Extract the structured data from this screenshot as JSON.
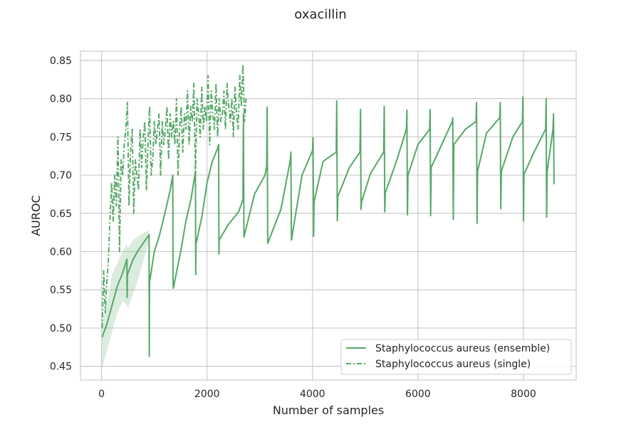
{
  "chart_data": {
    "type": "line",
    "title": "oxacillin",
    "xlabel": "Number of samples",
    "ylabel": "AUROC",
    "xlim": [
      -400,
      9000
    ],
    "ylim": [
      0.432,
      0.862
    ],
    "xticks": [
      0,
      2000,
      4000,
      6000,
      8000
    ],
    "xtick_labels": [
      "0",
      "2000",
      "4000",
      "6000",
      "8000"
    ],
    "yticks": [
      0.45,
      0.5,
      0.55,
      0.6,
      0.65,
      0.7,
      0.75,
      0.8,
      0.85
    ],
    "ytick_labels": [
      "0.45",
      "0.50",
      "0.55",
      "0.60",
      "0.65",
      "0.70",
      "0.75",
      "0.80",
      "0.85"
    ],
    "grid": true,
    "legend_position": "lower-right",
    "colors": {
      "series": "#55a868",
      "band": "#55a868",
      "grid": "#cccccc",
      "frame": "#cccccc"
    },
    "series": [
      {
        "name": "Staphylococcus aureus (ensemble)",
        "style": "solid",
        "x": [
          10,
          100,
          200,
          300,
          400,
          480,
          485,
          490,
          600,
          700,
          800,
          900,
          905,
          910,
          1000,
          1100,
          1200,
          1300,
          1350,
          1355,
          1360,
          1500,
          1600,
          1700,
          1780,
          1785,
          1790,
          1900,
          2000,
          2100,
          2200,
          2220,
          2225,
          2230,
          2400,
          2600,
          2680,
          2690,
          2700,
          2900,
          3100,
          3130,
          3140,
          3150,
          3400,
          3580,
          3590,
          3600,
          3800,
          4000,
          4010,
          4020,
          4030,
          4200,
          4450,
          4460,
          4470,
          4480,
          4700,
          4900,
          4910,
          4920,
          4930,
          5100,
          5350,
          5360,
          5370,
          5380,
          5600,
          5780,
          5790,
          5800,
          5810,
          6000,
          6220,
          6230,
          6240,
          6250,
          6450,
          6650,
          6660,
          6670,
          6680,
          6900,
          7100,
          7110,
          7120,
          7130,
          7300,
          7550,
          7560,
          7570,
          7580,
          7800,
          7980,
          7990,
          8000,
          8010,
          8200,
          8420,
          8430,
          8440,
          8450,
          8560,
          8570,
          8580
        ],
        "y": [
          0.488,
          0.505,
          0.53,
          0.555,
          0.572,
          0.59,
          0.54,
          0.57,
          0.59,
          0.602,
          0.612,
          0.622,
          0.463,
          0.56,
          0.6,
          0.622,
          0.65,
          0.68,
          0.7,
          0.565,
          0.552,
          0.6,
          0.64,
          0.67,
          0.705,
          0.57,
          0.61,
          0.645,
          0.69,
          0.718,
          0.735,
          0.74,
          0.597,
          0.615,
          0.635,
          0.652,
          0.668,
          0.78,
          0.619,
          0.675,
          0.7,
          0.712,
          0.789,
          0.611,
          0.655,
          0.72,
          0.73,
          0.615,
          0.7,
          0.732,
          0.749,
          0.62,
          0.665,
          0.718,
          0.73,
          0.797,
          0.64,
          0.672,
          0.71,
          0.73,
          0.786,
          0.655,
          0.665,
          0.702,
          0.73,
          0.79,
          0.652,
          0.677,
          0.72,
          0.76,
          0.785,
          0.648,
          0.7,
          0.74,
          0.76,
          0.786,
          0.647,
          0.71,
          0.74,
          0.77,
          0.775,
          0.642,
          0.74,
          0.76,
          0.77,
          0.795,
          0.637,
          0.705,
          0.755,
          0.775,
          0.795,
          0.656,
          0.705,
          0.75,
          0.77,
          0.802,
          0.64,
          0.701,
          0.73,
          0.76,
          0.8,
          0.645,
          0.705,
          0.76,
          0.78,
          0.688
        ]
      },
      {
        "name": "Staphylococcus aureus (single)",
        "style": "dashdot",
        "x": [
          10,
          40,
          70,
          100,
          130,
          160,
          190,
          220,
          250,
          280,
          310,
          340,
          370,
          400,
          430,
          460,
          490,
          520,
          550,
          580,
          610,
          640,
          670,
          700,
          730,
          760,
          790,
          820,
          850,
          880,
          910,
          940,
          970,
          1000,
          1030,
          1060,
          1090,
          1120,
          1150,
          1180,
          1210,
          1240,
          1270,
          1300,
          1330,
          1360,
          1390,
          1420,
          1450,
          1480,
          1510,
          1540,
          1570,
          1600,
          1630,
          1660,
          1690,
          1720,
          1750,
          1780,
          1810,
          1840,
          1870,
          1900,
          1930,
          1960,
          1990,
          2020,
          2050,
          2080,
          2110,
          2140,
          2170,
          2200,
          2230,
          2260,
          2290,
          2320,
          2350,
          2380,
          2410,
          2440,
          2470,
          2500,
          2530,
          2560,
          2590,
          2620,
          2650,
          2680,
          2710,
          2740
        ],
        "y": [
          0.5,
          0.575,
          0.52,
          0.56,
          0.59,
          0.645,
          0.69,
          0.64,
          0.7,
          0.66,
          0.75,
          0.6,
          0.72,
          0.7,
          0.74,
          0.76,
          0.795,
          0.66,
          0.73,
          0.76,
          0.65,
          0.72,
          0.7,
          0.68,
          0.76,
          0.71,
          0.75,
          0.77,
          0.68,
          0.74,
          0.79,
          0.7,
          0.72,
          0.77,
          0.74,
          0.76,
          0.78,
          0.7,
          0.77,
          0.74,
          0.76,
          0.79,
          0.72,
          0.78,
          0.75,
          0.77,
          0.74,
          0.8,
          0.7,
          0.76,
          0.79,
          0.73,
          0.78,
          0.76,
          0.81,
          0.74,
          0.79,
          0.77,
          0.82,
          0.7,
          0.8,
          0.78,
          0.75,
          0.815,
          0.76,
          0.79,
          0.77,
          0.83,
          0.74,
          0.81,
          0.78,
          0.76,
          0.82,
          0.75,
          0.8,
          0.77,
          0.78,
          0.81,
          0.76,
          0.82,
          0.79,
          0.77,
          0.8,
          0.75,
          0.815,
          0.78,
          0.76,
          0.83,
          0.79,
          0.845,
          0.77,
          0.8
        ]
      }
    ],
    "band": {
      "x": [
        10,
        100,
        200,
        300,
        400,
        480,
        500,
        600,
        700,
        800,
        900
      ],
      "upper": [
        0.51,
        0.53,
        0.57,
        0.585,
        0.6,
        0.61,
        0.605,
        0.615,
        0.62,
        0.625,
        0.628
      ],
      "lower": [
        0.448,
        0.47,
        0.495,
        0.52,
        0.535,
        0.53,
        0.525,
        0.545,
        0.565,
        0.59,
        0.615
      ]
    }
  }
}
